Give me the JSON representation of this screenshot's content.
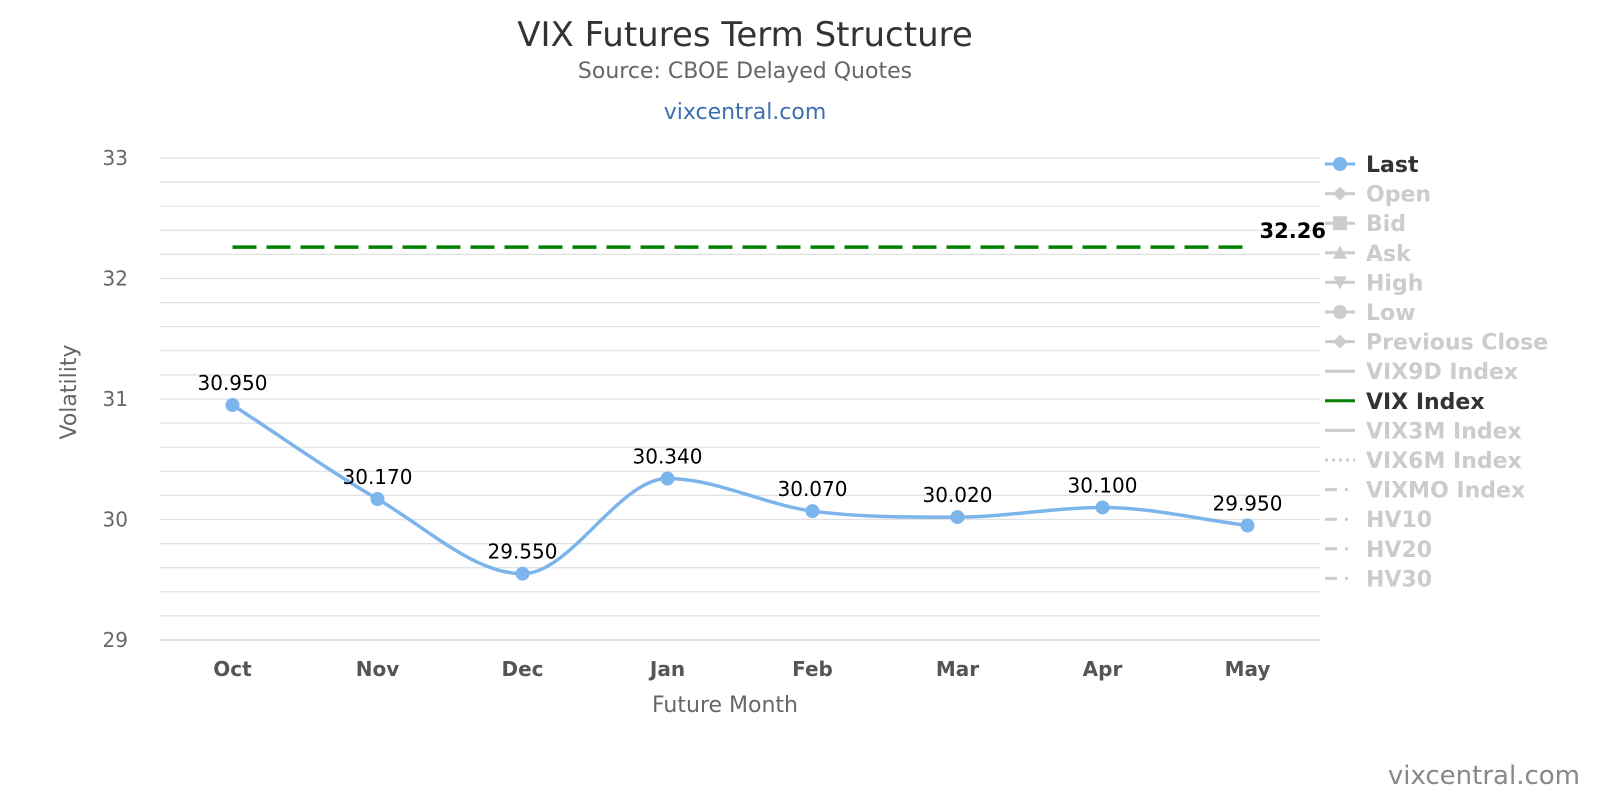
{
  "chart_data": {
    "type": "line",
    "title": "VIX Futures Term Structure",
    "subtitle": "Source: CBOE Delayed Quotes",
    "subtitle_link": "vixcentral.com",
    "xlabel": "Future Month",
    "ylabel": "Volatility",
    "ylim": [
      29,
      33
    ],
    "yticks": [
      "29",
      "30",
      "31",
      "32",
      "33"
    ],
    "categories": [
      "Oct",
      "Nov",
      "Dec",
      "Jan",
      "Feb",
      "Mar",
      "Apr",
      "May"
    ],
    "series": [
      {
        "name": "Last",
        "color": "#7cb5ec",
        "values": [
          30.95,
          30.17,
          29.55,
          30.34,
          30.07,
          30.02,
          30.1,
          29.95
        ],
        "labels": [
          "30.950",
          "30.170",
          "29.550",
          "30.340",
          "30.070",
          "30.020",
          "30.100",
          "29.950"
        ]
      },
      {
        "name": "VIX Index",
        "color": "#008000",
        "constant_value": 32.26,
        "label": "32.26"
      }
    ],
    "grid": true,
    "legend_position": "right",
    "legend": [
      {
        "name": "Last",
        "active": true,
        "marker": "circle",
        "line": "solid"
      },
      {
        "name": "Open",
        "active": false,
        "marker": "diamond",
        "line": "solid"
      },
      {
        "name": "Bid",
        "active": false,
        "marker": "square",
        "line": "solid"
      },
      {
        "name": "Ask",
        "active": false,
        "marker": "triangle",
        "line": "solid"
      },
      {
        "name": "High",
        "active": false,
        "marker": "triangle-down",
        "line": "solid"
      },
      {
        "name": "Low",
        "active": false,
        "marker": "circle",
        "line": "solid"
      },
      {
        "name": "Previous Close",
        "active": false,
        "marker": "diamond",
        "line": "solid"
      },
      {
        "name": "VIX9D Index",
        "active": false,
        "marker": "none",
        "line": "solid"
      },
      {
        "name": "VIX Index",
        "active": true,
        "marker": "none",
        "line": "solid",
        "color": "#008000"
      },
      {
        "name": "VIX3M Index",
        "active": false,
        "marker": "none",
        "line": "solid"
      },
      {
        "name": "VIX6M Index",
        "active": false,
        "marker": "none",
        "line": "dotted"
      },
      {
        "name": "VIXMO Index",
        "active": false,
        "marker": "none",
        "line": "dashdot"
      },
      {
        "name": "HV10",
        "active": false,
        "marker": "none",
        "line": "dashdot"
      },
      {
        "name": "HV20",
        "active": false,
        "marker": "none",
        "line": "dashdot"
      },
      {
        "name": "HV30",
        "active": false,
        "marker": "none",
        "line": "dashdot"
      }
    ]
  },
  "credit": "vixcentral.com",
  "colors": {
    "last": "#7cb5ec",
    "vix": "#008000",
    "legend_active": "#333333",
    "legend_inactive": "#cccccc",
    "grid": "#e0e0e0"
  }
}
